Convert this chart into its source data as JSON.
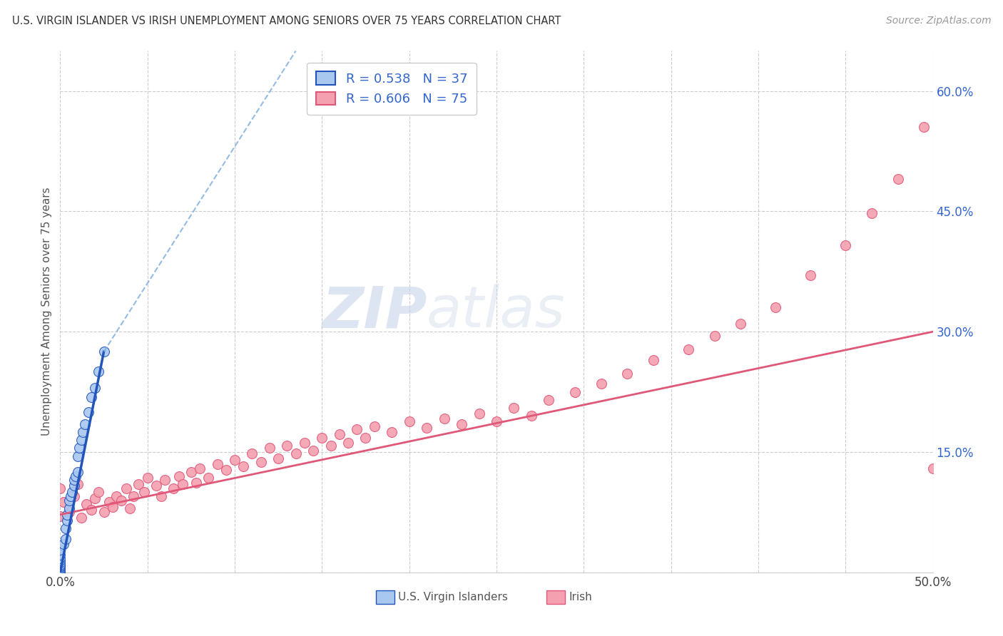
{
  "title": "U.S. VIRGIN ISLANDER VS IRISH UNEMPLOYMENT AMONG SENIORS OVER 75 YEARS CORRELATION CHART",
  "source": "Source: ZipAtlas.com",
  "ylabel": "Unemployment Among Seniors over 75 years",
  "xlim": [
    0.0,
    0.5
  ],
  "ylim": [
    0.0,
    0.65
  ],
  "xticks": [
    0.0,
    0.05,
    0.1,
    0.15,
    0.2,
    0.25,
    0.3,
    0.35,
    0.4,
    0.45,
    0.5
  ],
  "yticks": [
    0.0,
    0.15,
    0.3,
    0.45,
    0.6
  ],
  "yticklabels_right": [
    "",
    "15.0%",
    "30.0%",
    "45.0%",
    "60.0%"
  ],
  "legend_r_vi": "R = 0.538",
  "legend_n_vi": "N = 37",
  "legend_r_ir": "R = 0.606",
  "legend_n_ir": "N = 75",
  "color_vi": "#a8c8f0",
  "color_vi_line_solid": "#2255bb",
  "color_vi_line_dash": "#7aaade",
  "color_ir": "#f4a0b0",
  "color_ir_line": "#e05878",
  "watermark_zip": "ZIP",
  "watermark_atlas": "atlas",
  "vi_x": [
    0.0,
    0.0,
    0.0,
    0.0,
    0.0,
    0.0,
    0.0,
    0.0,
    0.0,
    0.0,
    0.0,
    0.0,
    0.0,
    0.0,
    0.002,
    0.003,
    0.003,
    0.004,
    0.004,
    0.005,
    0.005,
    0.006,
    0.007,
    0.008,
    0.008,
    0.009,
    0.01,
    0.01,
    0.011,
    0.012,
    0.013,
    0.014,
    0.016,
    0.018,
    0.02,
    0.022,
    0.025
  ],
  "vi_y": [
    0.0,
    0.0,
    0.0,
    0.002,
    0.003,
    0.005,
    0.007,
    0.008,
    0.01,
    0.012,
    0.015,
    0.018,
    0.022,
    0.028,
    0.035,
    0.042,
    0.055,
    0.065,
    0.072,
    0.08,
    0.09,
    0.095,
    0.1,
    0.108,
    0.115,
    0.12,
    0.125,
    0.145,
    0.155,
    0.165,
    0.175,
    0.185,
    0.2,
    0.218,
    0.23,
    0.25,
    0.275
  ],
  "ir_x": [
    0.0,
    0.0,
    0.002,
    0.005,
    0.008,
    0.01,
    0.012,
    0.015,
    0.018,
    0.02,
    0.022,
    0.025,
    0.028,
    0.03,
    0.032,
    0.035,
    0.038,
    0.04,
    0.042,
    0.045,
    0.048,
    0.05,
    0.055,
    0.058,
    0.06,
    0.065,
    0.068,
    0.07,
    0.075,
    0.078,
    0.08,
    0.085,
    0.09,
    0.095,
    0.1,
    0.105,
    0.11,
    0.115,
    0.12,
    0.125,
    0.13,
    0.135,
    0.14,
    0.145,
    0.15,
    0.155,
    0.16,
    0.165,
    0.17,
    0.175,
    0.18,
    0.19,
    0.2,
    0.21,
    0.22,
    0.23,
    0.24,
    0.25,
    0.26,
    0.27,
    0.28,
    0.295,
    0.31,
    0.325,
    0.34,
    0.36,
    0.375,
    0.39,
    0.41,
    0.43,
    0.45,
    0.465,
    0.48,
    0.495,
    0.5
  ],
  "ir_y": [
    0.07,
    0.105,
    0.088,
    0.075,
    0.095,
    0.11,
    0.068,
    0.085,
    0.078,
    0.092,
    0.1,
    0.075,
    0.088,
    0.082,
    0.095,
    0.09,
    0.105,
    0.08,
    0.095,
    0.11,
    0.1,
    0.118,
    0.108,
    0.095,
    0.115,
    0.105,
    0.12,
    0.11,
    0.125,
    0.112,
    0.13,
    0.118,
    0.135,
    0.128,
    0.14,
    0.132,
    0.148,
    0.138,
    0.155,
    0.142,
    0.158,
    0.148,
    0.162,
    0.152,
    0.168,
    0.158,
    0.172,
    0.162,
    0.178,
    0.168,
    0.182,
    0.175,
    0.188,
    0.18,
    0.192,
    0.185,
    0.198,
    0.188,
    0.205,
    0.195,
    0.215,
    0.225,
    0.235,
    0.248,
    0.265,
    0.278,
    0.295,
    0.31,
    0.33,
    0.37,
    0.408,
    0.448,
    0.49,
    0.555,
    0.13
  ],
  "ir_line_x0": 0.0,
  "ir_line_x1": 0.5,
  "ir_line_y0": 0.072,
  "ir_line_y1": 0.3,
  "vi_line_solid_x0": 0.0,
  "vi_line_solid_x1": 0.025,
  "vi_line_solid_y0": 0.0,
  "vi_line_solid_y1": 0.275,
  "vi_line_dash_x0": 0.025,
  "vi_line_dash_x1": 0.135,
  "vi_line_dash_y0": 0.275,
  "vi_line_dash_y1": 0.65
}
